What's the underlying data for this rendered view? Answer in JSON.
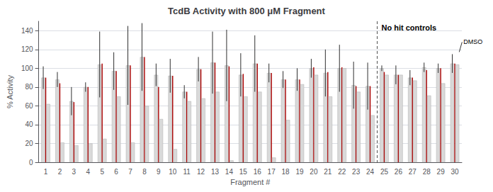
{
  "chart_data": {
    "type": "bar",
    "title": "TcdB Activity with 800 μM Fragment",
    "xlabel": "Fragment #",
    "ylabel": "% Activity",
    "categories": [
      "1",
      "2",
      "3",
      "4",
      "5",
      "6",
      "7",
      "8",
      "9",
      "10",
      "11",
      "12",
      "13",
      "14",
      "15",
      "16",
      "17",
      "18",
      "19",
      "20",
      "21",
      "22",
      "23",
      "24",
      "25",
      "26",
      "27",
      "28",
      "29",
      "30"
    ],
    "series": [
      {
        "color": "#d9d9d9",
        "values": [
          90,
          88,
          65,
          80,
          104,
          97,
          103,
          112,
          93,
          92,
          75,
          99,
          106,
          103,
          93,
          105,
          95,
          88,
          88,
          100,
          95,
          100,
          82,
          81,
          100,
          93,
          90,
          101,
          100,
          105
        ],
        "errors": [
          12,
          8,
          15,
          5,
          35,
          20,
          42,
          36,
          12,
          18,
          7,
          13,
          33,
          38,
          23,
          30,
          10,
          9,
          12,
          10,
          25,
          25,
          25,
          25,
          3,
          10,
          8,
          5,
          5,
          10
        ]
      },
      {
        "color": "#aa0000",
        "values": [
          90,
          84,
          64,
          80,
          105,
          97,
          103,
          112,
          80,
          92,
          75,
          99,
          106,
          102,
          94,
          105,
          95,
          88,
          88,
          101,
          96,
          101,
          81,
          81,
          96,
          93,
          90,
          98,
          100,
          105
        ]
      },
      {
        "color": "#d9d9d9",
        "values": [
          62,
          21,
          18,
          20,
          25,
          70,
          21,
          60,
          46,
          14,
          65,
          68,
          75,
          2,
          70,
          75,
          5,
          45,
          83,
          93,
          70,
          100,
          75,
          50,
          93,
          93,
          87,
          71,
          84,
          104
        ]
      }
    ],
    "annotations": [
      {
        "text": "No hit controls",
        "x": "25"
      },
      {
        "text": "DMSO",
        "x": "30"
      }
    ],
    "ylim": [
      0,
      150
    ],
    "yticks": [
      0,
      20,
      40,
      60,
      80,
      100,
      120,
      140
    ],
    "grid": true
  }
}
